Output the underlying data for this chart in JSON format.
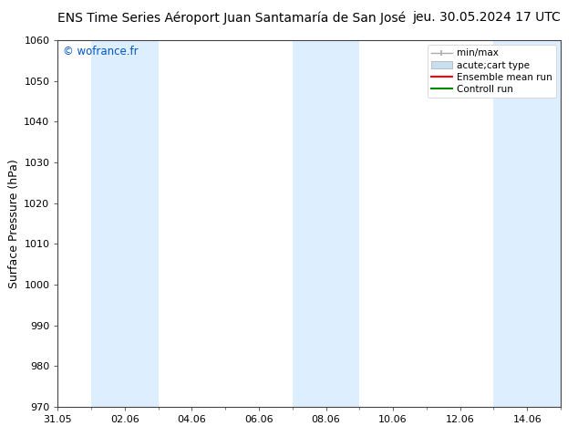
{
  "title_left": "ENS Time Series Aéroport Juan Santamaría de San José",
  "title_right": "jeu. 30.05.2024 17 UTC",
  "ylabel": "Surface Pressure (hPa)",
  "ylim": [
    970,
    1060
  ],
  "yticks": [
    970,
    980,
    990,
    1000,
    1010,
    1020,
    1030,
    1040,
    1050,
    1060
  ],
  "xtick_labels": [
    "31.05",
    "02.06",
    "04.06",
    "06.06",
    "08.06",
    "10.06",
    "12.06",
    "14.06"
  ],
  "xtick_positions": [
    0,
    2,
    4,
    6,
    8,
    10,
    12,
    14
  ],
  "xlim": [
    0,
    15
  ],
  "watermark": "© wofrance.fr",
  "watermark_color": "#0055cc",
  "bg_color": "#ffffff",
  "plot_bg_color": "#ffffff",
  "shaded_bands": [
    {
      "x_start": 1,
      "x_end": 3,
      "color": "#ddeeff"
    },
    {
      "x_start": 7,
      "x_end": 9,
      "color": "#ddeeff"
    },
    {
      "x_start": 13,
      "x_end": 15,
      "color": "#ddeeff"
    }
  ],
  "legend_entries": [
    {
      "label": "min/max",
      "type": "errorbar",
      "color": "#aaaaaa"
    },
    {
      "label": "acute;cart type",
      "type": "bar",
      "color": "#c8dff0"
    },
    {
      "label": "Ensemble mean run",
      "type": "line",
      "color": "#ff0000"
    },
    {
      "label": "Controll run",
      "type": "line",
      "color": "#008800"
    }
  ],
  "title_fontsize": 10,
  "tick_fontsize": 8,
  "ylabel_fontsize": 9,
  "legend_fontsize": 7.5
}
